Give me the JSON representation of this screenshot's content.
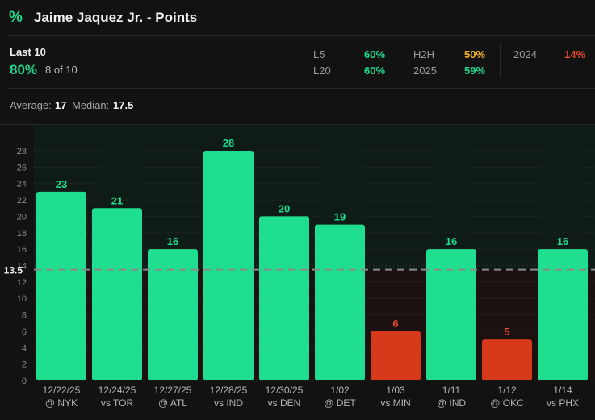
{
  "header": {
    "icon": "percent-icon",
    "icon_glyph": "%",
    "title": "Jaime Jaquez Jr. - Points"
  },
  "summary": {
    "last10_label": "Last 10",
    "last10_pct": "80%",
    "last10_count": "8 of 10",
    "stats": [
      {
        "label": "L5",
        "value": "60%",
        "color": "#1fd88e"
      },
      {
        "label": "L20",
        "value": "60%",
        "color": "#1fd88e"
      },
      {
        "label": "H2H",
        "value": "50%",
        "color": "#f5b32a"
      },
      {
        "label": "2025",
        "value": "59%",
        "color": "#1fd88e"
      },
      {
        "label": "2024",
        "value": "14%",
        "color": "#e0472b"
      }
    ],
    "average_label": "Average:",
    "average_value": "17",
    "median_label": "Median:",
    "median_value": "17.5"
  },
  "chart_data": {
    "type": "bar",
    "categories": [
      [
        "12/22/25",
        "@ NYK"
      ],
      [
        "12/24/25",
        "vs TOR"
      ],
      [
        "12/27/25",
        "@ ATL"
      ],
      [
        "12/28/25",
        "vs IND"
      ],
      [
        "12/30/25",
        "vs DEN"
      ],
      [
        "1/02",
        "@ DET"
      ],
      [
        "1/03",
        "vs MIN"
      ],
      [
        "1/11",
        "@ IND"
      ],
      [
        "1/12",
        "@ OKC"
      ],
      [
        "1/14",
        "vs PHX"
      ]
    ],
    "values": [
      23,
      21,
      16,
      28,
      20,
      19,
      6,
      16,
      5,
      16
    ],
    "line": 13.5,
    "line_label": "13.5",
    "ylim": [
      0,
      28
    ],
    "yticks": [
      0,
      2,
      4,
      6,
      8,
      10,
      12,
      14,
      16,
      18,
      20,
      22,
      24,
      26,
      28
    ],
    "over_color": "#1fde8f",
    "under_color": "#d63a1b",
    "grid": true
  }
}
